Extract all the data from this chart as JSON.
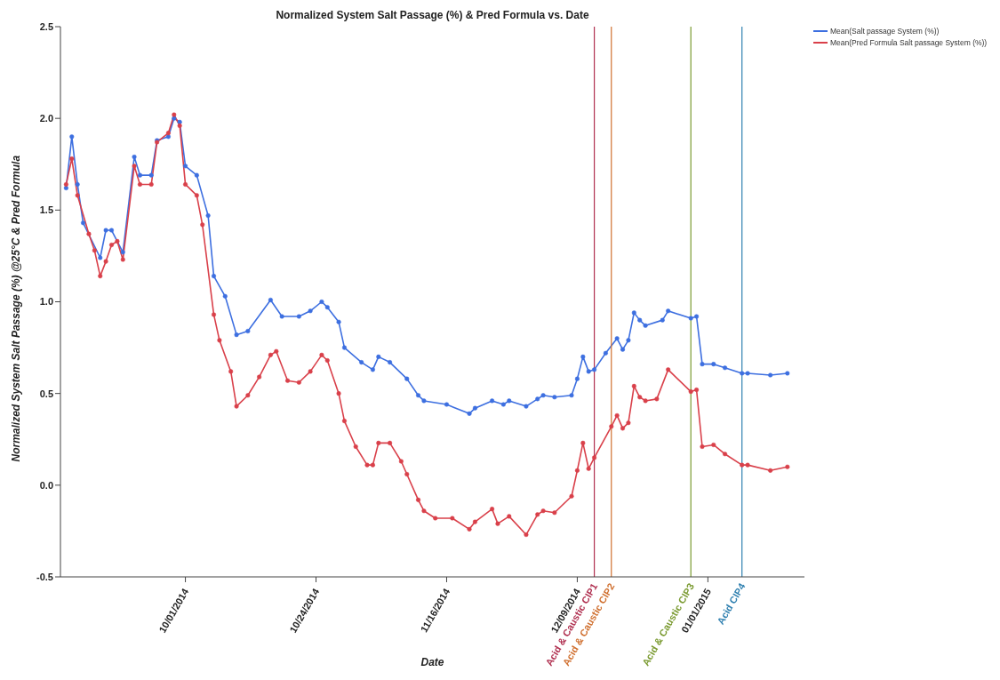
{
  "chart_data": {
    "type": "line",
    "title": "Normalized System Salt Passage (%) & Pred Formula vs. Date",
    "xlabel": "Date",
    "ylabel": "Normalized System Salt Passage (%) @25°C & Pred Formula",
    "xlim": [
      "2014-09-09",
      "2015-01-18"
    ],
    "xticks": [
      {
        "value": "2014-10-01",
        "label": "10/01/2014"
      },
      {
        "value": "2014-10-24",
        "label": "10/24/2014"
      },
      {
        "value": "2014-11-16",
        "label": "11/16/2014"
      },
      {
        "value": "2014-12-09",
        "label": "12/09/2014"
      },
      {
        "value": "2015-01-01",
        "label": "01/01/2015"
      }
    ],
    "ylim": [
      -0.5,
      2.5
    ],
    "yticks": [
      -0.5,
      {
        "value": 0,
        "label": "0.0"
      },
      0.5,
      {
        "value": 1,
        "label": "1.0"
      },
      1.5,
      {
        "value": 2,
        "label": "2.0"
      },
      2.5
    ],
    "grid": false,
    "legend": "top right",
    "marker": "circle",
    "line_style": "solid",
    "series": [
      {
        "name": "Mean(Salt passage System (%))",
        "color": "#3d6fe0",
        "x": [
          "2014-09-10",
          "2014-09-11",
          "2014-09-12",
          "2014-09-13",
          "2014-09-16",
          "2014-09-17",
          "2014-09-18",
          "2014-09-20",
          "2014-09-22",
          "2014-09-23",
          "2014-09-25",
          "2014-09-26",
          "2014-09-28",
          "2014-09-29",
          "2014-09-30",
          "2014-10-01",
          "2014-10-03",
          "2014-10-05",
          "2014-10-06",
          "2014-10-08",
          "2014-10-10",
          "2014-10-12",
          "2014-10-16",
          "2014-10-18",
          "2014-10-21",
          "2014-10-23",
          "2014-10-25",
          "2014-10-26",
          "2014-10-28",
          "2014-10-29",
          "2014-11-01",
          "2014-11-03",
          "2014-11-04",
          "2014-11-06",
          "2014-11-09",
          "2014-11-11",
          "2014-11-12",
          "2014-11-16",
          "2014-11-20",
          "2014-11-21",
          "2014-11-24",
          "2014-11-26",
          "2014-11-27",
          "2014-11-30",
          "2014-12-02",
          "2014-12-03",
          "2014-12-05",
          "2014-12-08",
          "2014-12-09",
          "2014-12-10",
          "2014-12-11",
          "2014-12-12",
          "2014-12-14",
          "2014-12-16",
          "2014-12-17",
          "2014-12-18",
          "2014-12-19",
          "2014-12-20",
          "2014-12-21",
          "2014-12-24",
          "2014-12-25",
          "2014-12-29",
          "2014-12-30",
          "2014-12-31",
          "2015-01-02",
          "2015-01-04",
          "2015-01-07",
          "2015-01-08",
          "2015-01-12",
          "2015-01-15"
        ],
        "values": [
          1.62,
          1.9,
          1.64,
          1.43,
          1.24,
          1.39,
          1.39,
          1.27,
          1.79,
          1.69,
          1.69,
          1.88,
          1.9,
          2.0,
          1.98,
          1.74,
          1.69,
          1.47,
          1.14,
          1.03,
          0.82,
          0.84,
          1.01,
          0.92,
          0.92,
          0.95,
          1.0,
          0.97,
          0.89,
          0.75,
          0.67,
          0.63,
          0.7,
          0.67,
          0.58,
          0.49,
          0.46,
          0.44,
          0.39,
          0.42,
          0.46,
          0.44,
          0.46,
          0.43,
          0.47,
          0.49,
          0.48,
          0.49,
          0.58,
          0.7,
          0.62,
          0.63,
          0.72,
          0.8,
          0.74,
          0.79,
          0.94,
          0.9,
          0.87,
          0.9,
          0.95,
          0.91,
          0.92,
          0.66,
          0.66,
          0.64,
          0.61,
          0.61,
          0.6,
          0.61
        ]
      },
      {
        "name": "Mean(Pred Formula Salt passage System (%))",
        "color": "#d9404a",
        "x": [
          "2014-09-10",
          "2014-09-11",
          "2014-09-12",
          "2014-09-14",
          "2014-09-15",
          "2014-09-16",
          "2014-09-17",
          "2014-09-18",
          "2014-09-19",
          "2014-09-20",
          "2014-09-22",
          "2014-09-23",
          "2014-09-25",
          "2014-09-26",
          "2014-09-28",
          "2014-09-29",
          "2014-09-30",
          "2014-10-01",
          "2014-10-03",
          "2014-10-04",
          "2014-10-06",
          "2014-10-07",
          "2014-10-09",
          "2014-10-10",
          "2014-10-12",
          "2014-10-14",
          "2014-10-16",
          "2014-10-17",
          "2014-10-19",
          "2014-10-21",
          "2014-10-23",
          "2014-10-25",
          "2014-10-26",
          "2014-10-28",
          "2014-10-29",
          "2014-10-31",
          "2014-11-02",
          "2014-11-03",
          "2014-11-04",
          "2014-11-06",
          "2014-11-08",
          "2014-11-09",
          "2014-11-11",
          "2014-11-12",
          "2014-11-14",
          "2014-11-17",
          "2014-11-20",
          "2014-11-21",
          "2014-11-24",
          "2014-11-25",
          "2014-11-27",
          "2014-11-30",
          "2014-12-02",
          "2014-12-03",
          "2014-12-05",
          "2014-12-08",
          "2014-12-09",
          "2014-12-10",
          "2014-12-11",
          "2014-12-12",
          "2014-12-15",
          "2014-12-16",
          "2014-12-17",
          "2014-12-18",
          "2014-12-19",
          "2014-12-20",
          "2014-12-21",
          "2014-12-23",
          "2014-12-25",
          "2014-12-29",
          "2014-12-30",
          "2014-12-31",
          "2015-01-02",
          "2015-01-04",
          "2015-01-07",
          "2015-01-08",
          "2015-01-12",
          "2015-01-15"
        ],
        "values": [
          1.64,
          1.78,
          1.58,
          1.37,
          1.28,
          1.14,
          1.22,
          1.31,
          1.33,
          1.23,
          1.74,
          1.64,
          1.64,
          1.87,
          1.92,
          2.02,
          1.96,
          1.64,
          1.58,
          1.42,
          0.93,
          0.79,
          0.62,
          0.43,
          0.49,
          0.59,
          0.71,
          0.73,
          0.57,
          0.56,
          0.62,
          0.71,
          0.68,
          0.5,
          0.35,
          0.21,
          0.11,
          0.11,
          0.23,
          0.23,
          0.13,
          0.06,
          -0.08,
          -0.14,
          -0.18,
          -0.18,
          -0.24,
          -0.2,
          -0.13,
          -0.21,
          -0.17,
          -0.27,
          -0.16,
          -0.14,
          -0.15,
          -0.06,
          0.08,
          0.23,
          0.09,
          0.15,
          0.32,
          0.38,
          0.31,
          0.34,
          0.54,
          0.48,
          0.46,
          0.47,
          0.63,
          0.51,
          0.52,
          0.21,
          0.22,
          0.17,
          0.11,
          0.11,
          0.08,
          0.1
        ]
      }
    ],
    "ref_lines": [
      {
        "axis": "x",
        "value": "2014-12-12",
        "label": "Acid & Caustic CIP1",
        "color": "#b03050"
      },
      {
        "axis": "x",
        "value": "2014-12-15",
        "label": "Acid & Caustic CIP2",
        "color": "#d07030"
      },
      {
        "axis": "x",
        "value": "2014-12-29",
        "label": "Acid & Caustic CIP3",
        "color": "#7a9a30"
      },
      {
        "axis": "x",
        "value": "2015-01-07",
        "label": "Acid CIP4",
        "color": "#3080b0"
      }
    ]
  }
}
